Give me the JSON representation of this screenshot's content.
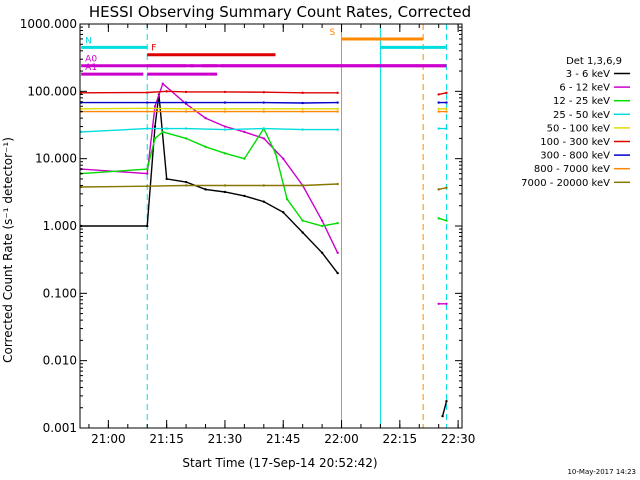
{
  "chart_data": {
    "type": "line",
    "title": "HESSI Observing Summary Count Rates, Corrected",
    "xlabel": "Start Time (17-Sep-14 20:52:42)",
    "ylabel": "Corrected Count Rate (s⁻¹ detector⁻¹)",
    "stamp": "10-May-2017 14:23",
    "legend_title": "Det 1,3,6,9",
    "legend_placement": "right",
    "y_scale": "log",
    "ylim": [
      0.001,
      1000
    ],
    "xlim": [
      "20:52:42",
      "22:31:00"
    ],
    "x_ticks": [
      "21:00",
      "21:15",
      "21:30",
      "21:45",
      "22:00",
      "22:15",
      "22:30"
    ],
    "y_ticks": [
      "1000.000",
      "100.000",
      "10.000",
      "1.000",
      "0.100",
      "0.010",
      "0.001"
    ],
    "series": [
      {
        "name": "3 - 6 keV",
        "color": "#000000",
        "x": [
          "20:53",
          "21:10",
          "21:12",
          "21:13",
          "21:15",
          "21:20",
          "21:25",
          "21:30",
          "21:35",
          "21:40",
          "21:45",
          "21:50",
          "21:55",
          "21:59",
          "22:26",
          "22:27"
        ],
        "values": [
          1.0,
          1.0,
          30,
          90,
          5,
          4.5,
          3.5,
          3.2,
          2.8,
          2.3,
          1.6,
          0.8,
          0.4,
          0.2,
          0.0015,
          0.0025
        ]
      },
      {
        "name": "6 - 12 keV",
        "color": "#cc00cc",
        "x": [
          "20:53",
          "21:10",
          "21:12",
          "21:14",
          "21:20",
          "21:25",
          "21:30",
          "21:35",
          "21:40",
          "21:45",
          "21:50",
          "21:55",
          "21:59",
          "22:25",
          "22:27"
        ],
        "values": [
          7,
          6,
          60,
          130,
          65,
          40,
          30,
          25,
          20,
          10,
          4,
          1.2,
          0.4,
          0.07,
          0.07
        ]
      },
      {
        "name": "12 - 25 keV",
        "color": "#00dd00",
        "x": [
          "20:53",
          "21:10",
          "21:12",
          "21:14",
          "21:20",
          "21:25",
          "21:30",
          "21:35",
          "21:40",
          "21:43",
          "21:46",
          "21:50",
          "21:55",
          "21:59",
          "22:25",
          "22:27"
        ],
        "values": [
          6,
          7,
          20,
          25,
          20,
          15,
          12,
          10,
          28,
          12,
          2.5,
          1.2,
          1.0,
          1.1,
          1.3,
          1.2
        ]
      },
      {
        "name": "25 - 50 keV",
        "color": "#00dddd",
        "x": [
          "20:53",
          "21:10",
          "21:15",
          "21:20",
          "21:30",
          "21:40",
          "21:50",
          "21:59",
          "22:25",
          "22:27"
        ],
        "values": [
          25,
          28,
          28,
          28,
          27,
          28,
          27,
          27,
          28,
          28
        ]
      },
      {
        "name": "50 - 100 keV",
        "color": "#dddd00",
        "x": [
          "20:53",
          "21:10",
          "21:20",
          "21:30",
          "21:40",
          "21:50",
          "21:59",
          "22:25",
          "22:27"
        ],
        "values": [
          55,
          56,
          55,
          55,
          55,
          55,
          55,
          55,
          55
        ]
      },
      {
        "name": "100 - 300 keV",
        "color": "#dd0000",
        "x": [
          "20:53",
          "21:10",
          "21:15",
          "21:20",
          "21:30",
          "21:40",
          "21:50",
          "21:59",
          "22:25",
          "22:27"
        ],
        "values": [
          95,
          96,
          100,
          98,
          98,
          97,
          95,
          95,
          90,
          95
        ]
      },
      {
        "name": "300 - 800 keV",
        "color": "#0000cc",
        "x": [
          "20:53",
          "21:10",
          "21:20",
          "21:30",
          "21:40",
          "21:50",
          "21:59",
          "22:25",
          "22:27"
        ],
        "values": [
          68,
          68,
          68,
          68,
          68,
          67,
          68,
          68,
          68
        ]
      },
      {
        "name": "800 - 7000 keV",
        "color": "#ff8800",
        "x": [
          "20:53",
          "21:10",
          "21:20",
          "21:30",
          "21:40",
          "21:50",
          "21:59",
          "22:25",
          "22:27"
        ],
        "values": [
          50,
          50,
          50,
          50,
          50,
          50,
          50,
          50,
          50
        ]
      },
      {
        "name": "7000 - 20000 keV",
        "color": "#887700",
        "x": [
          "20:53",
          "21:10",
          "21:20",
          "21:30",
          "21:40",
          "21:50",
          "21:59",
          "22:25",
          "22:27"
        ],
        "values": [
          3.8,
          3.9,
          4.0,
          4.0,
          4.0,
          4.0,
          4.2,
          3.5,
          3.7
        ]
      }
    ],
    "vertical_markers": [
      {
        "time": "20:52:42",
        "color": "#00dddd",
        "style": "solid"
      },
      {
        "time": "21:10",
        "color": "#00dddd",
        "style": "dashed"
      },
      {
        "time": "22:00",
        "color": "#ff8800",
        "style": "solid"
      },
      {
        "time": "22:10",
        "color": "#00dddd",
        "style": "solid"
      },
      {
        "time": "22:21",
        "color": "#ff8800",
        "style": "dashed"
      },
      {
        "time": "22:27",
        "color": "#00dddd",
        "style": "dashed"
      }
    ],
    "flag_bars": [
      {
        "label": "N",
        "color": "#00dddd",
        "segments": [
          [
            "20:53",
            "21:10"
          ],
          [
            "22:10",
            "22:27"
          ]
        ],
        "level": 450
      },
      {
        "label": "S",
        "color": "#ff8800",
        "segments": [
          [
            "22:00",
            "22:21"
          ]
        ],
        "level": 600
      },
      {
        "label": "F",
        "color": "#dd0000",
        "segments": [
          [
            "21:10",
            "21:43"
          ]
        ],
        "level": 350
      },
      {
        "label": "A0",
        "color": "#cc00cc",
        "segments": [
          [
            "20:53",
            "22:27"
          ]
        ],
        "level": 240
      },
      {
        "label": "",
        "color": "#cc00cc",
        "segments": [
          [
            "21:10",
            "21:20"
          ],
          [
            "21:21",
            "21:22"
          ],
          [
            "21:24",
            "21:28"
          ],
          [
            "21:29",
            "22:27"
          ]
        ],
        "level": 240
      },
      {
        "label": "A1",
        "color": "#cc00cc",
        "segments": [
          [
            "20:53",
            "21:09"
          ],
          [
            "21:10",
            "21:28"
          ]
        ],
        "level": 180
      }
    ]
  }
}
